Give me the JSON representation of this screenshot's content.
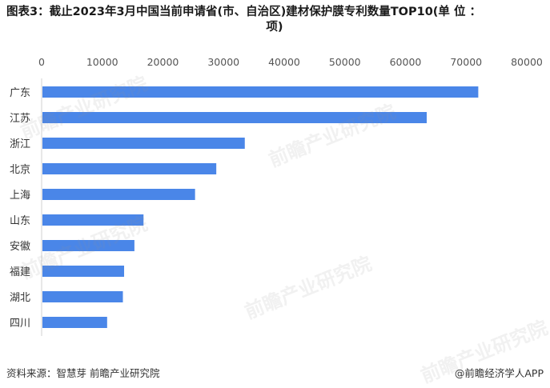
{
  "title_line1": "图表3：截止2023年3月中国当前申请省(市、自治区)建材保护膜专利数量TOP10(单 位 ：",
  "title_line2": "项)",
  "footer": {
    "source": "资料来源：智慧芽 前瞻产业研究院",
    "brand": "@前瞻经济学人APP"
  },
  "watermark_text": "前瞻产业研究院",
  "colors": {
    "bar": "#4a86e8",
    "axis_text": "#555555",
    "grid": "#ececec"
  },
  "chart_data": {
    "type": "bar",
    "orientation": "horizontal",
    "categories": [
      "广东",
      "江苏",
      "浙江",
      "北京",
      "上海",
      "山东",
      "安徽",
      "福建",
      "湖北",
      "四川"
    ],
    "values": [
      72000,
      63500,
      33500,
      28800,
      25300,
      16800,
      15300,
      13600,
      13400,
      10800
    ],
    "xlim": [
      0,
      80000
    ],
    "xticks": [
      "0",
      "10000",
      "20000",
      "30000",
      "40000",
      "50000",
      "60000",
      "70000",
      "80000"
    ],
    "x_axis_position": "top"
  }
}
